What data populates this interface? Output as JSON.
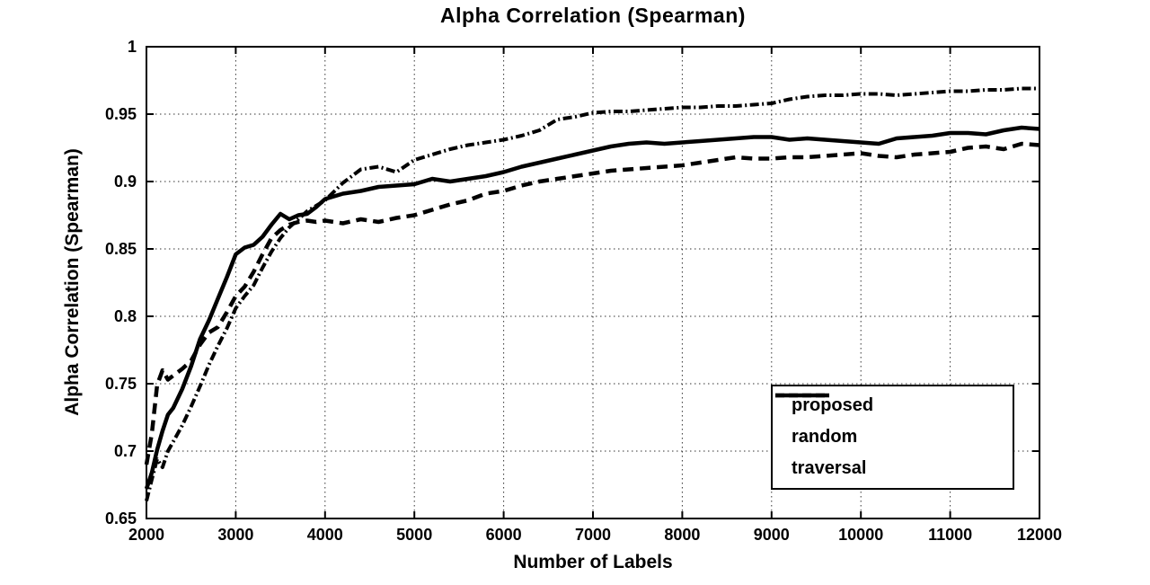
{
  "title": "Alpha Correlation (Spearman)",
  "legend": {
    "items": [
      "proposed",
      "random",
      "traversal"
    ]
  },
  "chart_data": {
    "type": "line",
    "title": "Alpha Correlation (Spearman)",
    "xlabel": "Number of Labels",
    "ylabel": "Alpha Correlation (Spearman)",
    "xlim": [
      2000,
      12000
    ],
    "ylim": [
      0.65,
      1.0
    ],
    "grid": true,
    "legend_position": "lower-right-inset",
    "axis_color": "#000000",
    "background": "#ffffff",
    "x_ticks": [
      2000,
      3000,
      4000,
      5000,
      6000,
      7000,
      8000,
      9000,
      10000,
      11000,
      12000
    ],
    "x_tick_labels": [
      "2000",
      "3000",
      "4000",
      "5000",
      "6000",
      "7000",
      "8000",
      "9000",
      "10000",
      "11000",
      "12000"
    ],
    "y_ticks": [
      0.65,
      0.7,
      0.75,
      0.8,
      0.85,
      0.9,
      0.95,
      1
    ],
    "y_tick_labels": [
      "0.65",
      "0.7",
      "0.75",
      "0.8",
      "0.85",
      "0.9",
      "0.95",
      "1"
    ],
    "x": [
      2000,
      2060,
      2120,
      2180,
      2240,
      2300,
      2400,
      2500,
      2600,
      2700,
      2800,
      2900,
      3000,
      3100,
      3200,
      3300,
      3400,
      3500,
      3600,
      3700,
      3800,
      3900,
      4000,
      4200,
      4400,
      4600,
      4800,
      5000,
      5200,
      5400,
      5600,
      5800,
      6000,
      6200,
      6400,
      6600,
      6800,
      7000,
      7200,
      7400,
      7600,
      7800,
      8000,
      8200,
      8400,
      8600,
      8800,
      9000,
      9200,
      9400,
      9600,
      9800,
      10000,
      10200,
      10400,
      10600,
      10800,
      11000,
      11200,
      11400,
      11600,
      11800,
      12000
    ],
    "series": [
      {
        "name": "proposed",
        "style": "solid",
        "line_width": 4.5,
        "dash": "",
        "legend_dash": "",
        "values": [
          0.672,
          0.684,
          0.701,
          0.715,
          0.727,
          0.732,
          0.746,
          0.763,
          0.783,
          0.797,
          0.813,
          0.829,
          0.846,
          0.851,
          0.853,
          0.859,
          0.868,
          0.876,
          0.872,
          0.875,
          0.876,
          0.881,
          0.887,
          0.891,
          0.893,
          0.896,
          0.897,
          0.898,
          0.902,
          0.9,
          0.902,
          0.904,
          0.907,
          0.911,
          0.914,
          0.917,
          0.92,
          0.923,
          0.926,
          0.928,
          0.929,
          0.928,
          0.929,
          0.93,
          0.931,
          0.932,
          0.933,
          0.933,
          0.931,
          0.932,
          0.931,
          0.93,
          0.929,
          0.928,
          0.932,
          0.933,
          0.934,
          0.936,
          0.936,
          0.935,
          0.938,
          0.94,
          0.939
        ]
      },
      {
        "name": "random",
        "style": "dash-dot",
        "line_width": 4,
        "dash": "10 3.5 2 3.5",
        "legend_dash": "9 4 2 4",
        "values": [
          0.663,
          0.679,
          0.694,
          0.688,
          0.7,
          0.707,
          0.719,
          0.733,
          0.748,
          0.764,
          0.778,
          0.791,
          0.806,
          0.815,
          0.823,
          0.836,
          0.848,
          0.858,
          0.866,
          0.872,
          0.878,
          0.882,
          0.886,
          0.899,
          0.909,
          0.911,
          0.907,
          0.916,
          0.92,
          0.924,
          0.927,
          0.929,
          0.931,
          0.934,
          0.938,
          0.946,
          0.948,
          0.951,
          0.952,
          0.952,
          0.953,
          0.954,
          0.955,
          0.955,
          0.956,
          0.956,
          0.957,
          0.958,
          0.961,
          0.963,
          0.964,
          0.964,
          0.965,
          0.965,
          0.964,
          0.965,
          0.966,
          0.967,
          0.967,
          0.968,
          0.968,
          0.969,
          0.969
        ]
      },
      {
        "name": "traversal",
        "style": "dashed",
        "line_width": 4.5,
        "dash": "12 7",
        "legend_dash": "10 5",
        "values": [
          0.69,
          0.713,
          0.749,
          0.76,
          0.753,
          0.756,
          0.761,
          0.767,
          0.779,
          0.788,
          0.792,
          0.803,
          0.815,
          0.822,
          0.833,
          0.846,
          0.858,
          0.864,
          0.868,
          0.87,
          0.871,
          0.87,
          0.871,
          0.869,
          0.872,
          0.87,
          0.873,
          0.875,
          0.879,
          0.883,
          0.886,
          0.891,
          0.893,
          0.897,
          0.9,
          0.902,
          0.904,
          0.906,
          0.908,
          0.909,
          0.91,
          0.911,
          0.912,
          0.914,
          0.916,
          0.918,
          0.917,
          0.917,
          0.918,
          0.918,
          0.919,
          0.92,
          0.921,
          0.919,
          0.918,
          0.92,
          0.921,
          0.922,
          0.925,
          0.926,
          0.924,
          0.928,
          0.927
        ]
      }
    ]
  }
}
